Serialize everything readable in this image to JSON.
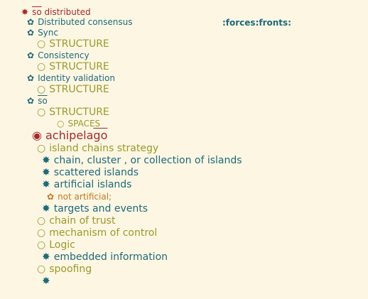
{
  "colors": {
    "background": "#fdf6e3",
    "level1": "#a52a2a",
    "level2": "#1c6b7a",
    "level3": "#9a9a2a",
    "level4": "#c07a1e"
  },
  "outline": {
    "root": {
      "bullet": "✸",
      "prefix": "so",
      "rest": " distributed"
    },
    "tags": ":forces:fronts:",
    "sections": [
      {
        "bullet": "✿",
        "title": "Distributed consensus"
      },
      {
        "bullet": "✿",
        "title": "Sync"
      },
      {
        "bullet": "○",
        "title": "STRUCTURE"
      },
      {
        "bullet": "✿",
        "title": "Consistency"
      },
      {
        "bullet": "○",
        "title": "STRUCTURE"
      },
      {
        "bullet": "✿",
        "title": "Identity validation"
      },
      {
        "bullet": "○",
        "title": "STRUCTURE"
      },
      {
        "bullet": "✿",
        "title": "so"
      },
      {
        "bullet": "○",
        "title": "STRUCTURE"
      },
      {
        "bullet": "○",
        "title": "SPACES"
      }
    ],
    "focus": {
      "bullet": "◉",
      "prefix": "achipela",
      "overline": "go"
    },
    "items": [
      {
        "bullet": "○",
        "title": "island chains strategy"
      },
      {
        "bullet": "✸",
        "title": "chain, cluster , or collection of islands"
      },
      {
        "bullet": "✸",
        "title": "scattered islands"
      },
      {
        "bullet": "✸",
        "title": "artificial islands"
      },
      {
        "bullet": "✿",
        "title": "not artificial;"
      },
      {
        "bullet": "✸",
        "title": "targets and events"
      },
      {
        "bullet": "○",
        "title": "chain of trust"
      },
      {
        "bullet": "○",
        "title": "mechanism of control"
      },
      {
        "bullet": "○",
        "title": "Logic"
      },
      {
        "bullet": "✸",
        "title": "embedded information"
      },
      {
        "bullet": "○",
        "title": "spoofing"
      },
      {
        "bullet": "✸",
        "title": ""
      }
    ]
  }
}
